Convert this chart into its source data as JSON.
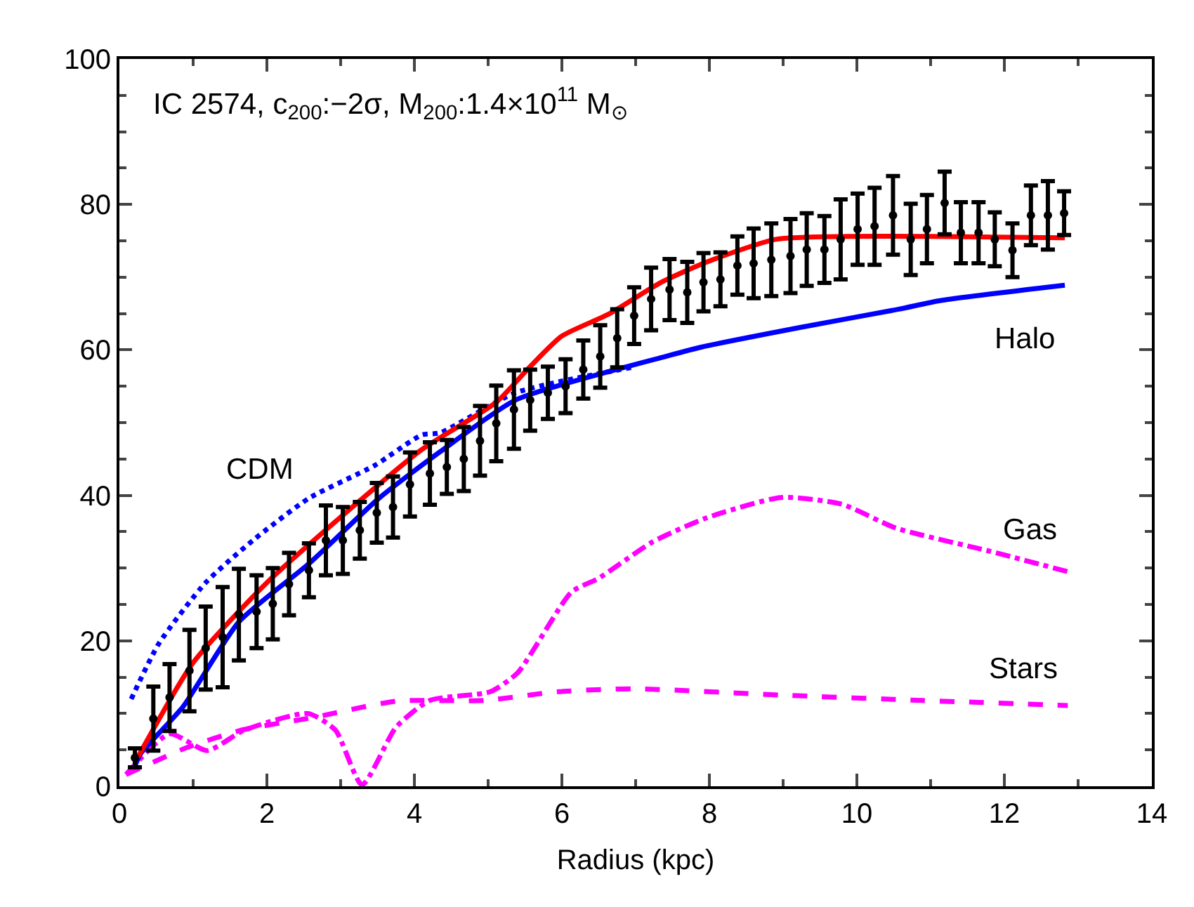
{
  "chart_data": {
    "type": "scatter",
    "xlabel": "Radius (kpc)",
    "xlim": [
      0,
      14
    ],
    "xticks": [
      0,
      2,
      4,
      6,
      8,
      10,
      12,
      14
    ],
    "ylim": [
      0,
      100
    ],
    "yticks": [
      0,
      20,
      40,
      60,
      80,
      100
    ],
    "annotations": [
      "IC 2574, c$_{200}$:−2σ, M$_{200}$:1.4×10$^{11}$ M$_{⊙}$"
    ],
    "series": [
      {
        "type": "line",
        "name": "Stars",
        "color": "#ff00ff",
        "line_style": "dashed",
        "x": [
          0.09,
          0.91,
          1.65,
          2.65,
          3.75,
          4.94,
          5.95,
          6.96,
          9.06,
          10.89,
          12.86
        ],
        "values": [
          1.6,
          5.3,
          7.7,
          9.5,
          11.7,
          11.8,
          13.0,
          13.4,
          12.5,
          11.8,
          11.1
        ]
      },
      {
        "type": "line",
        "name": "Gas",
        "color": "#ff00ff",
        "line_style": "dashdot",
        "x": [
          0.09,
          0.68,
          1.19,
          1.69,
          2.56,
          2.93,
          3.29,
          3.75,
          4.21,
          5.03,
          5.4,
          6.13,
          6.5,
          7.23,
          7.96,
          8.97,
          9.79,
          10.53,
          11.81,
          12.86
        ],
        "values": [
          1.6,
          7.2,
          4.9,
          7.7,
          10.0,
          7.7,
          0.2,
          8.1,
          11.8,
          13.0,
          15.6,
          26.7,
          28.6,
          33.6,
          36.9,
          39.7,
          38.8,
          35.5,
          32.3,
          29.5
        ]
      },
      {
        "type": "line",
        "name": "CDM",
        "color": "#0000ff",
        "line_style": "dotted",
        "x": [
          0.16,
          0.54,
          1.17,
          1.81,
          2.57,
          3.46,
          4.1,
          4.35,
          5.37,
          6.95
        ],
        "values": [
          12.0,
          19.7,
          28.0,
          33.8,
          39.6,
          44.1,
          48.3,
          48.6,
          54.1,
          57.6
        ]
      },
      {
        "type": "line",
        "name": "Halo",
        "color": "#0000ff",
        "line_style": "solid",
        "x": [
          0.2,
          0.29,
          0.86,
          1.62,
          2.57,
          3.52,
          4.35,
          5.37,
          6.63,
          7.33,
          7.9,
          9.24,
          10.57,
          11.14,
          12.82
        ],
        "values": [
          2.5,
          4.5,
          10.9,
          22.6,
          30.6,
          39.6,
          46.0,
          53.1,
          57.0,
          58.9,
          60.4,
          63.1,
          65.6,
          66.8,
          68.9
        ]
      },
      {
        "type": "line",
        "color": "#ff0000",
        "line_style": "solid",
        "x": [
          0.25,
          1.0,
          2.0,
          3.0,
          4.1,
          5.11,
          5.56,
          6.0,
          6.63,
          7.33,
          7.97,
          8.9,
          9.87,
          11.0,
          12.82
        ],
        "values": [
          4.0,
          17.0,
          28.0,
          37.0,
          46.3,
          52.8,
          57.6,
          61.9,
          64.9,
          69.2,
          72.1,
          75.2,
          75.6,
          75.6,
          75.4
        ]
      },
      {
        "color": "#000000",
        "marker": "circle",
        "x": [
          0.21,
          0.46,
          0.68,
          0.95,
          1.17,
          1.4,
          1.62,
          1.86,
          2.08,
          2.3,
          2.57,
          2.8,
          3.03,
          3.26,
          3.49,
          3.71,
          3.94,
          4.21,
          4.44,
          4.67,
          4.89,
          5.11,
          5.35,
          5.57,
          5.81,
          6.05,
          6.29,
          6.52,
          6.75,
          6.98,
          7.21,
          7.46,
          7.7,
          7.92,
          8.15,
          8.38,
          8.6,
          8.84,
          9.1,
          9.32,
          9.56,
          9.78,
          10.01,
          10.24,
          10.49,
          10.73,
          10.95,
          11.19,
          11.41,
          11.65,
          11.87,
          12.11,
          12.36,
          12.59,
          12.81
        ],
        "values": [
          3.9,
          9.3,
          12.2,
          15.9,
          19.0,
          20.5,
          23.6,
          24.0,
          25.1,
          27.8,
          29.7,
          33.8,
          33.8,
          35.2,
          37.6,
          38.4,
          41.5,
          43.0,
          43.9,
          45.0,
          47.5,
          49.9,
          51.8,
          53.1,
          54.1,
          55.0,
          57.3,
          59.1,
          61.6,
          64.7,
          67.0,
          68.3,
          67.9,
          69.3,
          69.7,
          71.6,
          71.9,
          72.4,
          72.9,
          73.8,
          73.8,
          75.2,
          76.6,
          77.0,
          78.5,
          75.2,
          76.6,
          80.2,
          76.1,
          76.1,
          75.2,
          73.7,
          78.5,
          78.5,
          78.8
        ],
        "errors": [
          1.3,
          4.4,
          4.6,
          5.6,
          5.7,
          6.9,
          6.3,
          5.0,
          4.9,
          4.3,
          3.7,
          4.8,
          4.6,
          3.9,
          4.1,
          4.2,
          4.4,
          4.3,
          3.7,
          4.4,
          4.8,
          5.2,
          5.4,
          4.2,
          3.6,
          3.7,
          4.0,
          4.3,
          4.0,
          3.9,
          4.3,
          4.2,
          4.2,
          4.0,
          3.7,
          4.0,
          4.8,
          5.0,
          5.1,
          5.0,
          4.6,
          5.5,
          4.9,
          5.3,
          5.4,
          4.9,
          4.7,
          4.3,
          4.2,
          4.2,
          3.7,
          3.7,
          4.1,
          4.7,
          3.0
        ]
      }
    ]
  }
}
